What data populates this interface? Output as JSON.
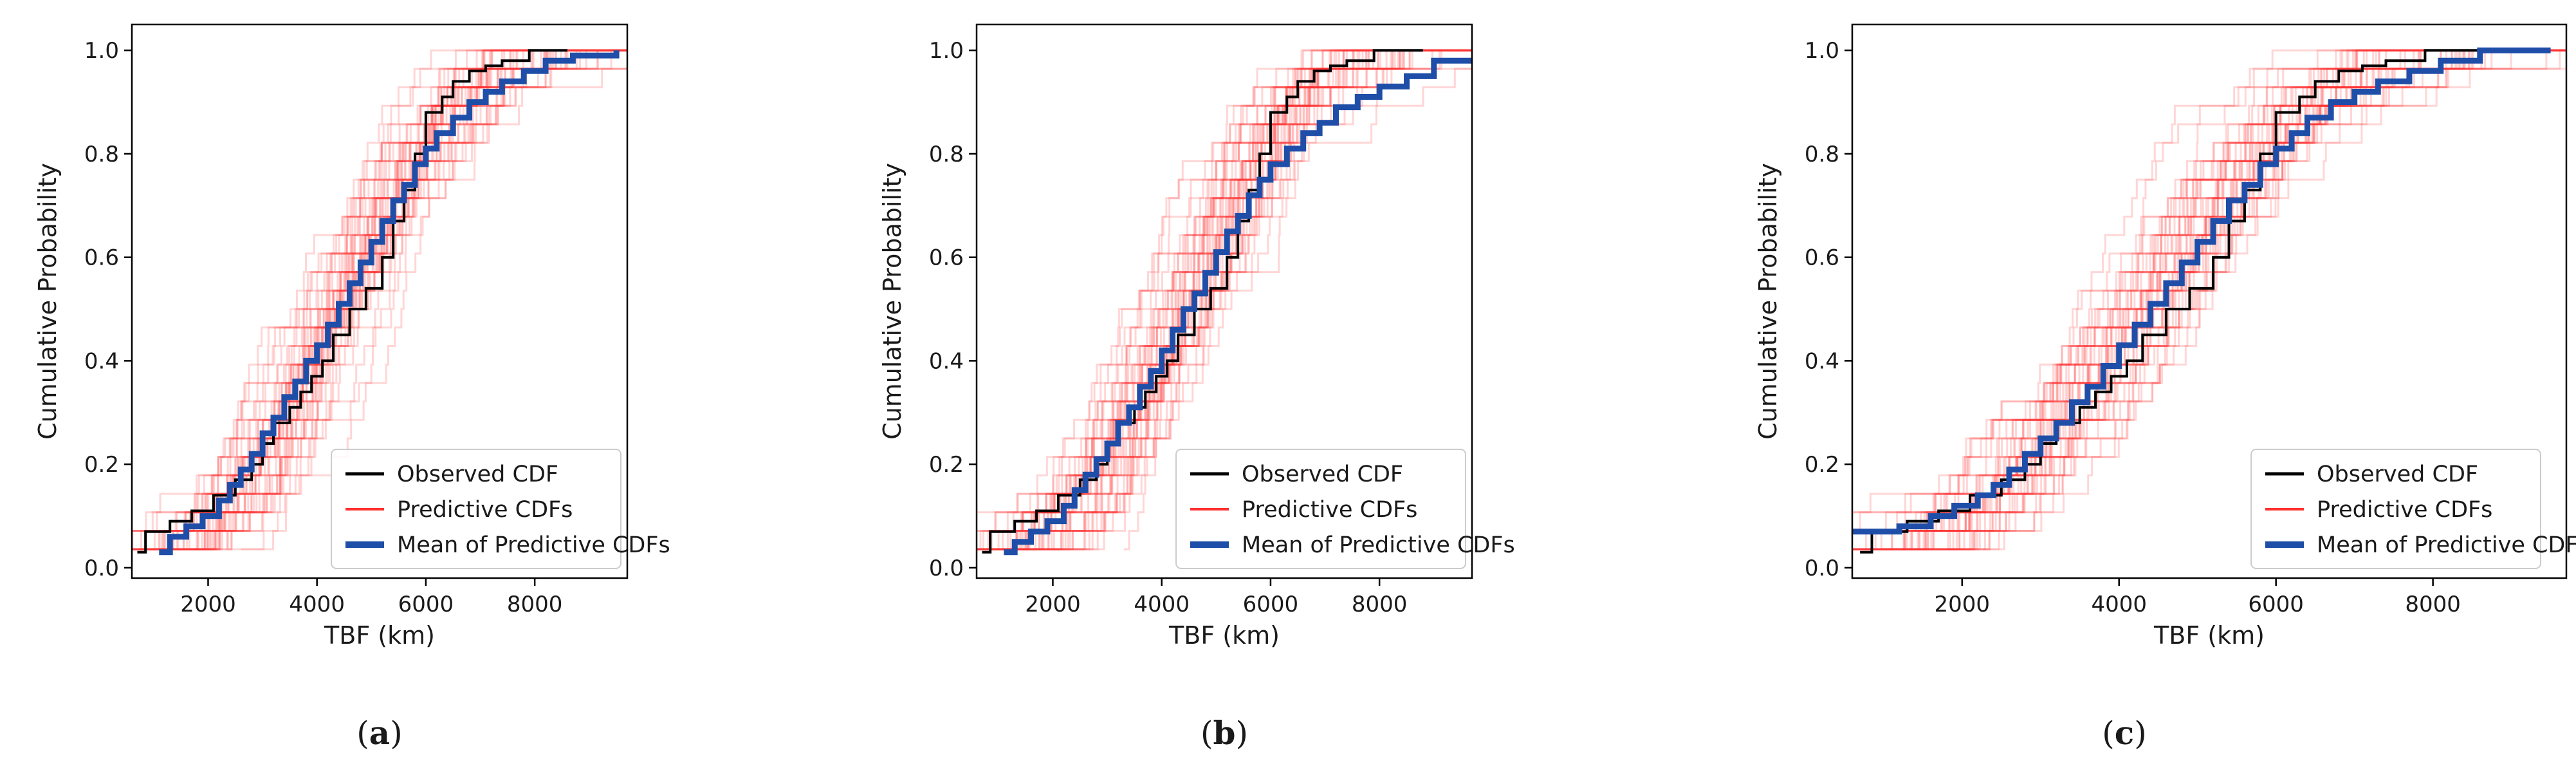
{
  "chart_data": [
    {
      "type": "line",
      "panel": "a",
      "caption_open": "(",
      "caption_letter": "a",
      "caption_close": ")",
      "xlabel": "TBF (km)",
      "ylabel": "Cumulative Probability",
      "xlim": [
        600,
        9700
      ],
      "ylim": [
        -0.02,
        1.05
      ],
      "xticks": [
        2000,
        4000,
        6000,
        8000
      ],
      "yticks": [
        0.0,
        0.2,
        0.4,
        0.6,
        0.8,
        1.0
      ],
      "xtick_labels": [
        "2000",
        "4000",
        "6000",
        "8000"
      ],
      "ytick_labels": [
        "0.0",
        "0.2",
        "0.4",
        "0.6",
        "0.8",
        "1.0"
      ],
      "legend_position": "lower-right",
      "legend": [
        "Observed CDF",
        "Predictive CDFs",
        "Mean of Predictive CDFs"
      ],
      "colors": {
        "observed": "#000000",
        "predictive": "#ff3030",
        "mean": "#1f4ea8"
      },
      "predictive_cdf_count": 50,
      "series": [
        {
          "name": "Observed CDF",
          "x": [
            700,
            850,
            1300,
            1700,
            2100,
            2500,
            2800,
            3000,
            3200,
            3500,
            3700,
            3900,
            4100,
            4300,
            4600,
            4900,
            5200,
            5400,
            5600,
            5800,
            6000,
            6300,
            6500,
            6800,
            7100,
            7400,
            7900,
            8600
          ],
          "y": [
            0.03,
            0.07,
            0.09,
            0.11,
            0.14,
            0.17,
            0.2,
            0.24,
            0.28,
            0.31,
            0.34,
            0.37,
            0.4,
            0.45,
            0.5,
            0.54,
            0.6,
            0.67,
            0.73,
            0.8,
            0.88,
            0.91,
            0.94,
            0.96,
            0.97,
            0.98,
            1.0,
            1.0
          ]
        },
        {
          "name": "Mean of Predictive CDFs",
          "x": [
            1100,
            1300,
            1600,
            1900,
            2200,
            2400,
            2600,
            2800,
            3000,
            3200,
            3400,
            3600,
            3800,
            4000,
            4200,
            4400,
            4600,
            4800,
            5000,
            5200,
            5400,
            5600,
            5800,
            6000,
            6200,
            6500,
            6800,
            7100,
            7400,
            7800,
            8200,
            8700,
            9500
          ],
          "y": [
            0.03,
            0.06,
            0.08,
            0.1,
            0.13,
            0.16,
            0.19,
            0.22,
            0.26,
            0.29,
            0.33,
            0.36,
            0.4,
            0.43,
            0.47,
            0.51,
            0.55,
            0.59,
            0.63,
            0.67,
            0.71,
            0.74,
            0.78,
            0.81,
            0.84,
            0.87,
            0.9,
            0.92,
            0.94,
            0.96,
            0.98,
            0.99,
            1.0
          ]
        }
      ]
    },
    {
      "type": "line",
      "panel": "b",
      "caption_open": "(",
      "caption_letter": "b",
      "caption_close": ")",
      "xlabel": "TBF (km)",
      "ylabel": "Cumulative Probability",
      "xlim": [
        600,
        9700
      ],
      "ylim": [
        -0.02,
        1.05
      ],
      "xticks": [
        2000,
        4000,
        6000,
        8000
      ],
      "yticks": [
        0.0,
        0.2,
        0.4,
        0.6,
        0.8,
        1.0
      ],
      "xtick_labels": [
        "2000",
        "4000",
        "6000",
        "8000"
      ],
      "ytick_labels": [
        "0.0",
        "0.2",
        "0.4",
        "0.6",
        "0.8",
        "1.0"
      ],
      "legend_position": "lower-right",
      "legend": [
        "Observed CDF",
        "Predictive CDFs",
        "Mean of Predictive CDFs"
      ],
      "colors": {
        "observed": "#000000",
        "predictive": "#ff3030",
        "mean": "#1f4ea8"
      },
      "predictive_cdf_count": 50,
      "series": [
        {
          "name": "Observed CDF",
          "x": [
            700,
            850,
            1300,
            1700,
            2100,
            2500,
            2800,
            3000,
            3200,
            3500,
            3700,
            3900,
            4100,
            4300,
            4600,
            4900,
            5200,
            5400,
            5600,
            5800,
            6000,
            6300,
            6500,
            6800,
            7100,
            7400,
            7900,
            8800
          ],
          "y": [
            0.03,
            0.07,
            0.09,
            0.11,
            0.14,
            0.17,
            0.2,
            0.24,
            0.28,
            0.31,
            0.34,
            0.37,
            0.4,
            0.45,
            0.5,
            0.54,
            0.6,
            0.67,
            0.73,
            0.8,
            0.88,
            0.91,
            0.94,
            0.96,
            0.97,
            0.98,
            1.0,
            1.0
          ]
        },
        {
          "name": "Mean of Predictive CDFs",
          "x": [
            1100,
            1300,
            1600,
            1900,
            2200,
            2400,
            2600,
            2800,
            3000,
            3200,
            3400,
            3600,
            3800,
            4000,
            4200,
            4400,
            4600,
            4800,
            5000,
            5200,
            5400,
            5600,
            5800,
            6000,
            6300,
            6600,
            6900,
            7200,
            7600,
            8000,
            8500,
            9000,
            9700
          ],
          "y": [
            0.03,
            0.05,
            0.07,
            0.09,
            0.12,
            0.15,
            0.18,
            0.21,
            0.24,
            0.28,
            0.31,
            0.35,
            0.38,
            0.42,
            0.46,
            0.5,
            0.53,
            0.57,
            0.61,
            0.65,
            0.68,
            0.72,
            0.75,
            0.78,
            0.81,
            0.84,
            0.86,
            0.89,
            0.91,
            0.93,
            0.95,
            0.98,
            0.98
          ]
        }
      ]
    },
    {
      "type": "line",
      "panel": "c",
      "caption_open": "(",
      "caption_letter": "c",
      "caption_close": ")",
      "xlabel": "TBF (km)",
      "ylabel": "Cumulative Probability",
      "xlim": [
        600,
        9700
      ],
      "ylim": [
        -0.02,
        1.05
      ],
      "xticks": [
        2000,
        4000,
        6000,
        8000
      ],
      "yticks": [
        0.0,
        0.2,
        0.4,
        0.6,
        0.8,
        1.0
      ],
      "xtick_labels": [
        "2000",
        "4000",
        "6000",
        "8000"
      ],
      "ytick_labels": [
        "0.0",
        "0.2",
        "0.4",
        "0.6",
        "0.8",
        "1.0"
      ],
      "legend_position": "lower-right",
      "legend": [
        "Observed CDF",
        "Predictive CDFs",
        "Mean of Predictive CDFs"
      ],
      "colors": {
        "observed": "#000000",
        "predictive": "#ff3030",
        "mean": "#1f4ea8"
      },
      "predictive_cdf_count": 50,
      "series": [
        {
          "name": "Observed CDF",
          "x": [
            700,
            850,
            1300,
            1700,
            2100,
            2500,
            2800,
            3000,
            3200,
            3500,
            3700,
            3900,
            4100,
            4300,
            4600,
            4900,
            5200,
            5400,
            5600,
            5800,
            6000,
            6300,
            6500,
            6800,
            7100,
            7400,
            7900,
            8600
          ],
          "y": [
            0.03,
            0.07,
            0.09,
            0.11,
            0.14,
            0.17,
            0.2,
            0.24,
            0.28,
            0.31,
            0.34,
            0.37,
            0.4,
            0.45,
            0.5,
            0.54,
            0.6,
            0.67,
            0.73,
            0.8,
            0.88,
            0.91,
            0.94,
            0.96,
            0.97,
            0.98,
            1.0,
            1.0
          ]
        },
        {
          "name": "Mean of Predictive CDFs",
          "x": [
            600,
            1200,
            1600,
            1900,
            2200,
            2400,
            2600,
            2800,
            3000,
            3200,
            3400,
            3600,
            3800,
            4000,
            4200,
            4400,
            4600,
            4800,
            5000,
            5200,
            5400,
            5600,
            5800,
            6000,
            6200,
            6400,
            6700,
            7000,
            7300,
            7700,
            8100,
            8600,
            9500
          ],
          "y": [
            0.07,
            0.08,
            0.1,
            0.12,
            0.14,
            0.16,
            0.19,
            0.22,
            0.25,
            0.28,
            0.32,
            0.35,
            0.39,
            0.43,
            0.47,
            0.51,
            0.55,
            0.59,
            0.63,
            0.67,
            0.71,
            0.74,
            0.78,
            0.81,
            0.84,
            0.87,
            0.9,
            0.92,
            0.94,
            0.96,
            0.98,
            1.0,
            1.0
          ]
        }
      ]
    }
  ]
}
